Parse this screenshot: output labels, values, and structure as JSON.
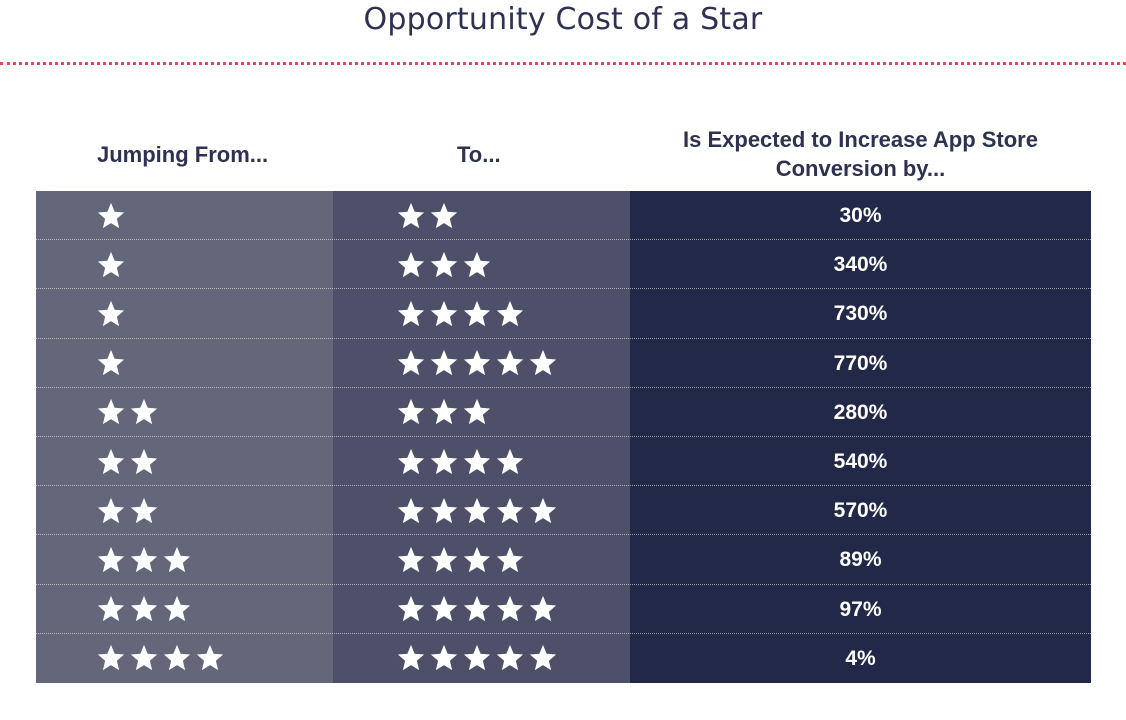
{
  "title": "Opportunity Cost of a Star",
  "colors": {
    "title": "#2e3150",
    "rule": "#e8464c",
    "col_from": "#646679",
    "col_to": "#4e5069",
    "col_increase": "#222847",
    "star": "#ffffff"
  },
  "headers": {
    "from": "Jumping From...",
    "to": "To...",
    "increase_line1": "Is Expected to Increase App Store",
    "increase_line2": "Conversion by..."
  },
  "star_icon": "star-icon",
  "chart_data": {
    "type": "table",
    "title": "Opportunity Cost of a Star",
    "columns": [
      "Jumping From...",
      "To...",
      "Is Expected to Increase App Store Conversion by..."
    ],
    "rows": [
      {
        "from_stars": 1,
        "to_stars": 2,
        "increase": "30%"
      },
      {
        "from_stars": 1,
        "to_stars": 3,
        "increase": "340%"
      },
      {
        "from_stars": 1,
        "to_stars": 4,
        "increase": "730%"
      },
      {
        "from_stars": 1,
        "to_stars": 5,
        "increase": "770%"
      },
      {
        "from_stars": 2,
        "to_stars": 3,
        "increase": "280%"
      },
      {
        "from_stars": 2,
        "to_stars": 4,
        "increase": "540%"
      },
      {
        "from_stars": 2,
        "to_stars": 5,
        "increase": "570%"
      },
      {
        "from_stars": 3,
        "to_stars": 4,
        "increase": "89%"
      },
      {
        "from_stars": 3,
        "to_stars": 5,
        "increase": "97%"
      },
      {
        "from_stars": 4,
        "to_stars": 5,
        "increase": "4%"
      }
    ]
  }
}
